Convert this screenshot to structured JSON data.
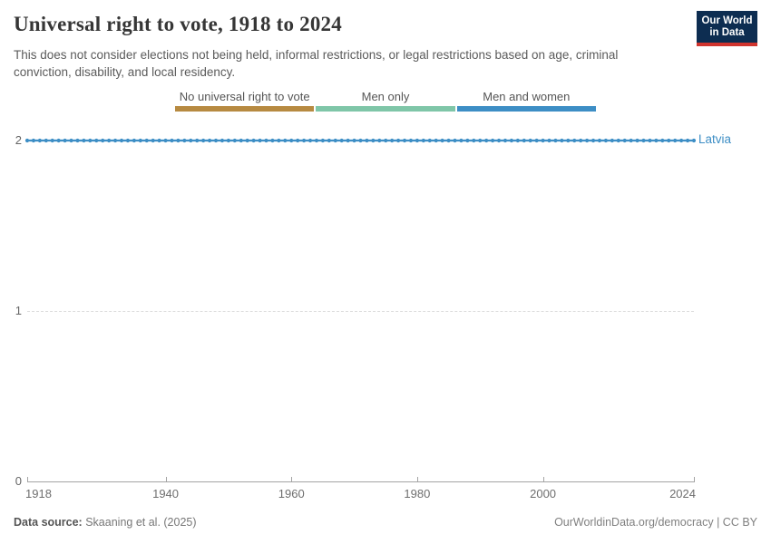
{
  "header": {
    "title": "Universal right to vote, 1918 to 2024",
    "subtitle": "This does not consider elections not being held, informal restrictions, or legal restrictions based on age, criminal conviction, disability, and local residency.",
    "logo": {
      "line1": "Our World",
      "line2": "in Data",
      "bg_color": "#0d2d51",
      "accent_color": "#d0342e"
    }
  },
  "legend": {
    "items": [
      {
        "label": "No universal right to vote",
        "color": "#b78a41",
        "value": 0
      },
      {
        "label": "Men only",
        "color": "#7fc6a8",
        "value": 1
      },
      {
        "label": "Men and women",
        "color": "#3d8ec5",
        "value": 2
      }
    ]
  },
  "chart_data": {
    "type": "line",
    "title": "Universal right to vote, 1918 to 2024",
    "x": {
      "start": 1918,
      "end": 2024,
      "step": 1
    },
    "series": [
      {
        "name": "Latvia",
        "color": "#3d8ec5",
        "constant_value": 2,
        "note": "Value is 2 (Men and women) for every year from 1918 through 2024; drawn as a flat dotted line at y=2"
      }
    ],
    "ylim": [
      0,
      2
    ],
    "yticks": [
      0,
      1,
      2
    ],
    "xticks": [
      1918,
      1940,
      1960,
      1980,
      2000,
      2024
    ],
    "grid": "horizontal dashed gridlines at y ticks",
    "marker": "circle",
    "legend_position": "top category bar"
  },
  "footer": {
    "source_label": "Data source:",
    "source_value": "Skaaning et al. (2025)",
    "credit": "OurWorldinData.org/democracy | CC BY"
  }
}
